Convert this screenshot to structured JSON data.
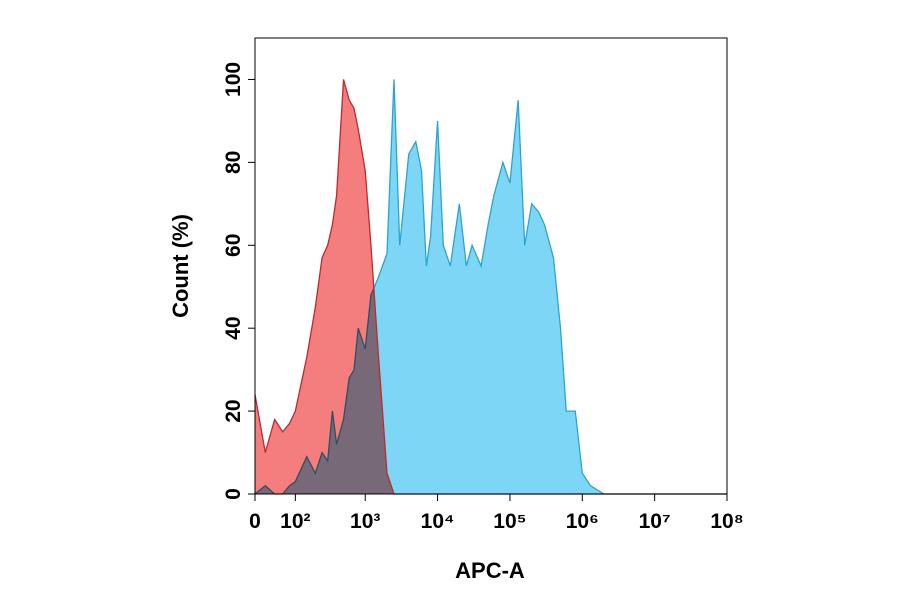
{
  "chart_data": {
    "type": "area",
    "xlabel": "APC-A",
    "ylabel": "Count  (%)",
    "xscale": "biexponential",
    "x": [
      0,
      20,
      40,
      60,
      80,
      100,
      150,
      200,
      250,
      300,
      350,
      400,
      500,
      600,
      700,
      800,
      1000,
      1200,
      1500,
      2000,
      2500,
      3000,
      4000,
      5000,
      6000,
      7000,
      8000,
      10000,
      12000,
      15000,
      20000,
      25000,
      30000,
      40000,
      50000,
      60000,
      80000,
      100000,
      130000,
      160000,
      200000,
      250000,
      300000,
      400000,
      500000,
      600000,
      800000,
      1000000,
      1300000,
      1600000,
      2000000,
      3000000,
      5000000,
      10000000,
      100000000
    ],
    "series": [
      {
        "color": "#7dd6f5",
        "edge": "#2aa5cd",
        "values": [
          0,
          2,
          0,
          0,
          2,
          3,
          9,
          5,
          10,
          8,
          20,
          12,
          18,
          28,
          30,
          40,
          35,
          48,
          52,
          58,
          100,
          60,
          82,
          85,
          78,
          55,
          62,
          90,
          60,
          55,
          70,
          55,
          60,
          55,
          65,
          72,
          80,
          75,
          95,
          60,
          70,
          68,
          65,
          57,
          40,
          20,
          20,
          5,
          2,
          1,
          0,
          0,
          0,
          0,
          0
        ]
      },
      {
        "color": "#f47272",
        "edge": "#c0282d",
        "values": [
          24,
          10,
          18,
          15,
          17,
          20,
          33,
          45,
          57,
          60,
          65,
          72,
          100,
          95,
          93,
          88,
          78,
          60,
          35,
          5,
          0,
          0,
          0,
          0,
          0,
          0,
          0,
          0,
          0,
          0,
          0,
          0,
          0,
          0,
          0,
          0,
          0,
          0,
          0,
          0,
          0,
          0,
          0,
          0,
          0,
          0,
          0,
          0,
          0,
          0,
          0,
          0,
          0,
          0,
          0
        ]
      }
    ],
    "xlim": [
      0,
      100000000
    ],
    "xticks": [
      0,
      {
        "value": 100,
        "label": "10²"
      },
      {
        "value": 1000,
        "label": "10³"
      },
      {
        "value": 10000,
        "label": "10⁴"
      },
      {
        "value": 100000,
        "label": "10⁵"
      },
      {
        "value": 1000000,
        "label": "10⁶"
      },
      {
        "value": 10000000,
        "label": "10⁷"
      },
      {
        "value": 100000000,
        "label": "10⁸"
      }
    ],
    "ylim": [
      0,
      110
    ],
    "yticks": [
      0,
      20,
      40,
      60,
      80,
      100
    ]
  }
}
